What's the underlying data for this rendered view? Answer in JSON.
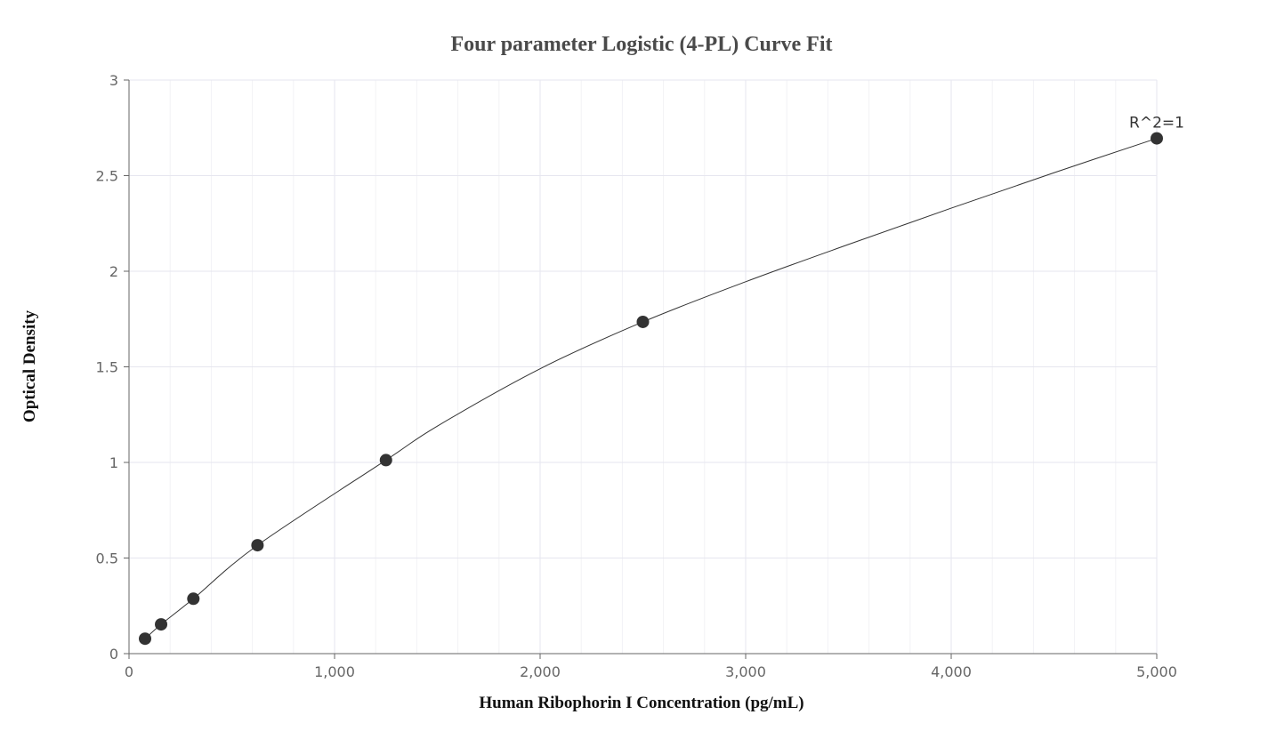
{
  "chart_data": {
    "type": "scatter",
    "title": "Four parameter Logistic (4-PL) Curve Fit",
    "xlabel": "Human Ribophorin I Concentration (pg/mL)",
    "ylabel": "Optical Density",
    "xlim": [
      0,
      5000
    ],
    "ylim": [
      0,
      3
    ],
    "x_ticks": [
      0,
      1000,
      2000,
      3000,
      4000,
      5000
    ],
    "x_tick_labels": [
      "0",
      "1,000",
      "2,000",
      "3,000",
      "4,000",
      "5,000"
    ],
    "y_ticks": [
      0,
      0.5,
      1,
      1.5,
      2,
      2.5,
      3
    ],
    "y_tick_labels": [
      "0",
      "0.5",
      "1",
      "1.5",
      "2",
      "2.5",
      "3"
    ],
    "grid": true,
    "points": [
      {
        "x": 78,
        "y": 0.078
      },
      {
        "x": 156,
        "y": 0.153
      },
      {
        "x": 313,
        "y": 0.287
      },
      {
        "x": 625,
        "y": 0.567
      },
      {
        "x": 1250,
        "y": 1.012
      },
      {
        "x": 2500,
        "y": 1.735
      },
      {
        "x": 5000,
        "y": 2.695
      }
    ],
    "fit_curve": {
      "type": "4PL",
      "points": [
        [
          78,
          0.078
        ],
        [
          156,
          0.153
        ],
        [
          313,
          0.287
        ],
        [
          625,
          0.567
        ],
        [
          1250,
          1.012
        ],
        [
          1500,
          1.19
        ],
        [
          2000,
          1.49
        ],
        [
          2500,
          1.735
        ],
        [
          3000,
          1.945
        ],
        [
          3500,
          2.14
        ],
        [
          4000,
          2.33
        ],
        [
          4500,
          2.515
        ],
        [
          5000,
          2.695
        ]
      ]
    },
    "annotation": {
      "text": "R^2=1",
      "x": 5000,
      "y": 2.695
    },
    "colors": {
      "point": "#333333",
      "curve": "#333333",
      "grid": "#e6e6ef",
      "axis": "#666666"
    }
  }
}
